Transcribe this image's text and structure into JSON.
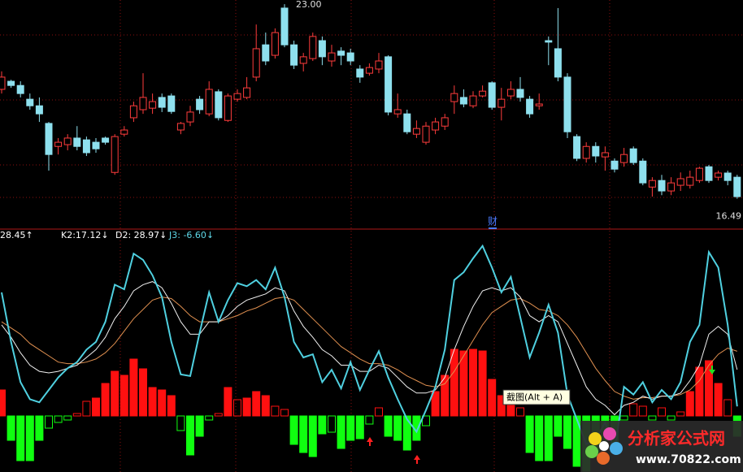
{
  "chart_data": [
    {
      "type": "candlestick",
      "open": [
        20.15,
        20.42,
        20.28,
        19.82,
        19.6,
        19.01,
        18.24,
        18.3,
        18.52,
        18.46,
        18.38,
        18.52,
        17.37,
        18.65,
        19.2,
        19.47,
        19.52,
        19.88,
        19.93,
        18.79,
        19.06,
        19.82,
        19.33,
        20.07,
        19.11,
        19.82,
        19.88,
        20.56,
        21.64,
        21.29,
        22.87,
        21.64,
        21.02,
        21.18,
        21.78,
        21.1,
        21.43,
        21.37,
        20.83,
        20.69,
        20.83,
        21.24,
        19.33,
        19.33,
        18.65,
        18.38,
        18.79,
        18.92,
        19.74,
        19.88,
        19.6,
        19.93,
        20.37,
        19.55,
        19.93,
        20.15,
        19.82,
        19.6,
        21.78,
        21.51,
        20.56,
        18.57,
        17.84,
        18.24,
        17.89,
        17.75,
        17.7,
        18.16,
        17.75,
        16.88,
        17.1,
        16.75,
        16.94,
        16.94,
        17.1,
        17.56,
        17.21,
        17.35,
        17.21
      ],
      "high": [
        20.75,
        20.47,
        20.42,
        20.01,
        19.88,
        19.06,
        18.52,
        18.65,
        18.92,
        18.57,
        18.52,
        18.57,
        18.65,
        18.92,
        19.74,
        20.69,
        20.01,
        20.01,
        20.01,
        19.06,
        19.6,
        19.93,
        20.42,
        20.15,
        20.01,
        20.15,
        20.56,
        22.32,
        22.05,
        22.19,
        23.0,
        21.78,
        21.37,
        22.05,
        21.92,
        21.64,
        21.56,
        21.51,
        20.96,
        21.02,
        21.37,
        21.29,
        20.01,
        19.47,
        19.11,
        19.06,
        19.2,
        19.33,
        20.28,
        20.15,
        20.09,
        20.28,
        20.42,
        20.2,
        20.42,
        20.56,
        19.93,
        20.01,
        21.92,
        22.87,
        20.69,
        18.65,
        18.38,
        18.38,
        18.24,
        17.84,
        18.19,
        18.24,
        17.84,
        17.21,
        17.29,
        17.21,
        17.37,
        17.43,
        17.56,
        17.62,
        17.43,
        17.43,
        17.29
      ],
      "low": [
        20.01,
        20.2,
        19.88,
        19.47,
        19.06,
        17.43,
        17.97,
        18.11,
        18.11,
        17.92,
        18.03,
        18.3,
        17.29,
        18.57,
        19.06,
        19.33,
        19.33,
        19.39,
        19.33,
        18.65,
        18.92,
        19.33,
        19.25,
        19.11,
        19.06,
        19.74,
        19.82,
        20.42,
        20.96,
        21.18,
        21.56,
        20.83,
        20.75,
        21.1,
        20.96,
        20.91,
        20.96,
        20.96,
        20.37,
        20.61,
        20.69,
        19.28,
        19.2,
        18.65,
        18.52,
        18.3,
        18.65,
        18.79,
        19.33,
        19.55,
        19.52,
        19.88,
        19.47,
        19.11,
        19.82,
        19.74,
        19.2,
        19.47,
        20.96,
        20.42,
        18.52,
        17.75,
        17.7,
        17.7,
        17.43,
        17.37,
        17.56,
        17.62,
        16.94,
        16.56,
        16.61,
        16.61,
        16.75,
        16.83,
        17.02,
        17.02,
        17.1,
        16.94,
        16.49
      ],
      "close": [
        20.56,
        20.28,
        20.01,
        19.6,
        19.33,
        17.97,
        18.38,
        18.52,
        18.24,
        18.03,
        18.16,
        18.38,
        18.57,
        18.79,
        19.6,
        19.88,
        19.74,
        19.55,
        19.41,
        19.01,
        19.39,
        19.47,
        20.15,
        19.2,
        19.93,
        20.01,
        20.2,
        21.51,
        21.1,
        22.05,
        21.64,
        20.96,
        21.24,
        21.92,
        21.24,
        21.37,
        21.29,
        21.1,
        20.56,
        20.88,
        21.1,
        19.39,
        19.47,
        18.73,
        18.84,
        18.92,
        19.06,
        19.2,
        20.01,
        19.66,
        19.93,
        20.09,
        19.55,
        19.82,
        20.15,
        19.88,
        19.33,
        19.66,
        21.73,
        20.56,
        18.73,
        17.84,
        18.24,
        17.92,
        18.03,
        17.48,
        17.97,
        17.7,
        17.02,
        17.1,
        16.75,
        17.02,
        17.16,
        17.21,
        17.51,
        17.1,
        17.35,
        17.1,
        16.56
      ],
      "ylim": [
        15.8,
        23.14
      ],
      "up_color": "#ff3c3c",
      "down_color": "#8ee0ee",
      "high_label": "23.00",
      "low_label": "16.49",
      "marker_label": "财"
    },
    {
      "type": "indicator",
      "header": [
        "28.45↑",
        "K2:17.12↓",
        "D2: 28.97↓",
        "J3: -6.60↓"
      ],
      "header_colors": [
        "#ffffff",
        "#ffffff",
        "#ffffff",
        "#5fd8e8"
      ],
      "ylim": [
        -49,
        100
      ],
      "y2lim": [
        -69,
        100
      ],
      "series": [
        {
          "type": "bar",
          "axis": "y2",
          "up_color": "#ff1010",
          "down_color": "#10ff10",
          "values": [
            32,
            -30,
            -55,
            -55,
            -30,
            -15,
            -8,
            -5,
            3,
            18,
            22,
            40,
            55,
            50,
            70,
            58,
            35,
            32,
            25,
            -18,
            -48,
            -25,
            -5,
            3,
            35,
            20,
            22,
            30,
            25,
            12,
            8,
            -35,
            -45,
            -50,
            -22,
            -20,
            -40,
            -30,
            -28,
            -10,
            10,
            -25,
            -30,
            -42,
            -30,
            -12,
            30,
            50,
            82,
            80,
            82,
            80,
            45,
            25,
            28,
            10,
            -45,
            -55,
            -55,
            -25,
            -40,
            -62,
            -68,
            -50,
            -30,
            -35,
            -5,
            15,
            12,
            -5,
            10,
            -5,
            5,
            30,
            60,
            68,
            40,
            20,
            -25
          ]
        },
        {
          "type": "line",
          "color": "#e09050",
          "values": [
            48,
            44,
            40,
            34,
            30,
            26,
            22,
            21,
            21,
            22,
            24,
            28,
            34,
            42,
            50,
            56,
            62,
            64,
            63,
            58,
            52,
            48,
            48,
            48,
            50,
            52,
            55,
            57,
            60,
            63,
            64,
            62,
            56,
            50,
            44,
            38,
            32,
            28,
            24,
            21,
            21,
            20,
            17,
            13,
            10,
            7,
            6,
            8,
            16,
            26,
            36,
            46,
            54,
            58,
            62,
            63,
            60,
            56,
            55,
            52,
            46,
            38,
            28,
            18,
            10,
            3,
            0,
            -2,
            -1,
            -1,
            0,
            0,
            1,
            4,
            10,
            20,
            27,
            31,
            28.97
          ]
        },
        {
          "type": "line",
          "color": "#f0f0f0",
          "values": [
            46,
            38,
            28,
            20,
            16,
            15,
            16,
            18,
            20,
            25,
            30,
            38,
            50,
            58,
            68,
            72,
            74,
            70,
            60,
            48,
            40,
            40,
            48,
            48,
            52,
            58,
            62,
            64,
            66,
            70,
            68,
            55,
            45,
            38,
            30,
            26,
            20,
            20,
            16,
            16,
            20,
            18,
            12,
            6,
            2,
            2,
            4,
            12,
            30,
            45,
            58,
            68,
            70,
            68,
            70,
            64,
            52,
            48,
            52,
            48,
            34,
            20,
            6,
            -2,
            -6,
            -12,
            -6,
            -4,
            0,
            -2,
            0,
            0,
            2,
            10,
            20,
            40,
            45,
            40,
            17.12
          ]
        },
        {
          "type": "line",
          "color": "#4fd0e0",
          "values": [
            67,
            35,
            9,
            -2,
            -4,
            4,
            12,
            18,
            22,
            30,
            35,
            48,
            72,
            69,
            92,
            88,
            78,
            64,
            35,
            14,
            13,
            41,
            67,
            48,
            62,
            73,
            71,
            75,
            69,
            83,
            64,
            35,
            25,
            27,
            9,
            17,
            5,
            22,
            4,
            17,
            29,
            12,
            -2,
            -15,
            -23,
            -9,
            6,
            30,
            75,
            80,
            89,
            97,
            83,
            67,
            77,
            51,
            25,
            41,
            59,
            41,
            1,
            -15,
            -31,
            -28,
            -17,
            -36,
            6,
            1,
            9,
            -4,
            4,
            -2,
            9,
            35,
            46,
            93,
            83,
            46,
            -6.6
          ]
        }
      ]
    }
  ],
  "overlay": {
    "tooltip": "截图(Alt + A)",
    "watermark_title": "分析家公式网",
    "watermark_url": "www.70822.com"
  }
}
